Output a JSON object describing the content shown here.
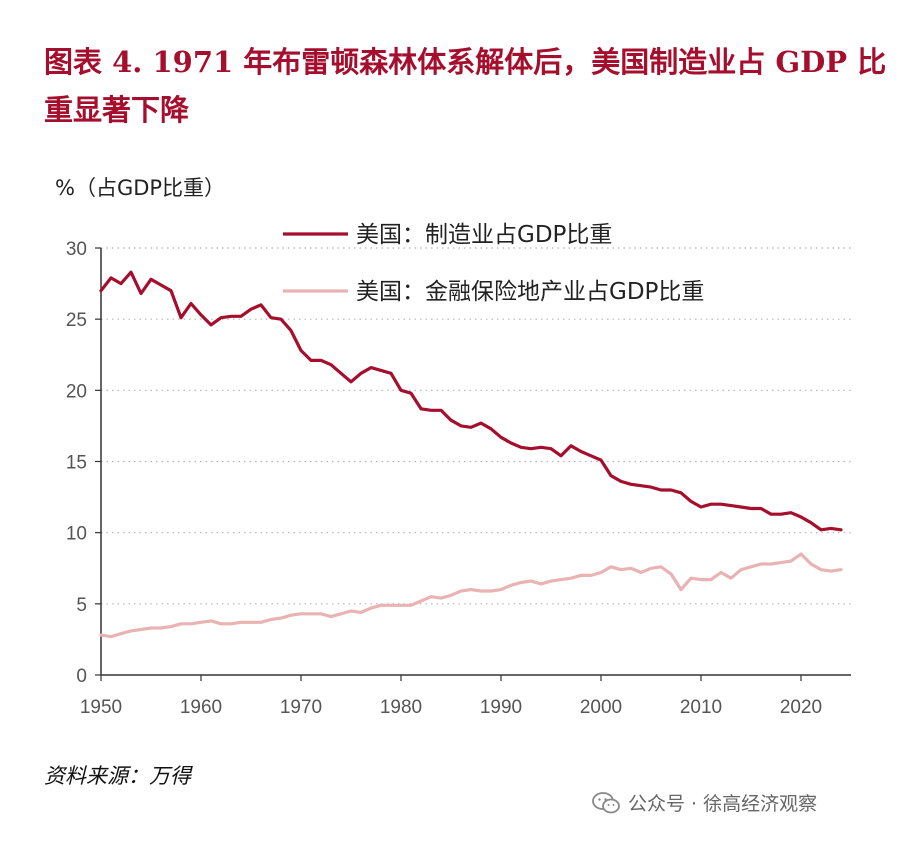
{
  "figure": {
    "title": "图表 4.   1971 年布雷顿森林体系解体后，美国制造业占 GDP 比重显著下降",
    "unit_label": "%（占GDP比重）",
    "source": "资料来源：万得",
    "watermark": "公众号 · 徐高经济观察"
  },
  "colors": {
    "title": "#a50f2d",
    "manufacturing": "#a50f2d",
    "finance": "#eab3b3"
  },
  "chart_data": {
    "type": "line",
    "title": "",
    "xlabel": "",
    "ylabel": "%（占GDP比重）",
    "xlim": [
      1950,
      2025
    ],
    "ylim": [
      0,
      30
    ],
    "x_ticks": [
      1950,
      1960,
      1970,
      1980,
      1990,
      2000,
      2010,
      2020
    ],
    "y_ticks": [
      0,
      5,
      10,
      15,
      20,
      25,
      30
    ],
    "grid": "horizontal dotted",
    "legend_position": "top-right",
    "x": [
      1950,
      1951,
      1952,
      1953,
      1954,
      1955,
      1956,
      1957,
      1958,
      1959,
      1960,
      1961,
      1962,
      1963,
      1964,
      1965,
      1966,
      1967,
      1968,
      1969,
      1970,
      1971,
      1972,
      1973,
      1974,
      1975,
      1976,
      1977,
      1978,
      1979,
      1980,
      1981,
      1982,
      1983,
      1984,
      1985,
      1986,
      1987,
      1988,
      1989,
      1990,
      1991,
      1992,
      1993,
      1994,
      1995,
      1996,
      1997,
      1998,
      1999,
      2000,
      2001,
      2002,
      2003,
      2004,
      2005,
      2006,
      2007,
      2008,
      2009,
      2010,
      2011,
      2012,
      2013,
      2014,
      2015,
      2016,
      2017,
      2018,
      2019,
      2020,
      2021,
      2022,
      2023,
      2024
    ],
    "series": [
      {
        "name": "美国：制造业占GDP比重",
        "values": [
          27.0,
          27.9,
          27.5,
          28.3,
          26.8,
          27.8,
          27.4,
          27.0,
          25.1,
          26.1,
          25.3,
          24.6,
          25.1,
          25.2,
          25.2,
          25.7,
          26.0,
          25.1,
          25.0,
          24.2,
          22.8,
          22.1,
          22.1,
          21.8,
          21.2,
          20.6,
          21.2,
          21.6,
          21.4,
          21.2,
          20.0,
          19.8,
          18.7,
          18.6,
          18.6,
          17.9,
          17.5,
          17.4,
          17.7,
          17.3,
          16.7,
          16.3,
          16.0,
          15.9,
          16.0,
          15.9,
          15.4,
          16.1,
          15.7,
          15.4,
          15.1,
          14.0,
          13.6,
          13.4,
          13.3,
          13.2,
          13.0,
          13.0,
          12.8,
          12.2,
          11.8,
          12.0,
          12.0,
          11.9,
          11.8,
          11.7,
          11.7,
          11.3,
          11.3,
          11.4,
          11.1,
          10.7,
          10.2,
          10.3,
          10.2
        ]
      },
      {
        "name": "美国：金融保险地产业占GDP比重",
        "values": [
          2.8,
          2.7,
          2.9,
          3.1,
          3.2,
          3.3,
          3.3,
          3.4,
          3.6,
          3.6,
          3.7,
          3.8,
          3.6,
          3.6,
          3.7,
          3.7,
          3.7,
          3.9,
          4.0,
          4.2,
          4.3,
          4.3,
          4.3,
          4.1,
          4.3,
          4.5,
          4.4,
          4.7,
          4.9,
          4.9,
          4.9,
          4.9,
          5.2,
          5.5,
          5.4,
          5.6,
          5.9,
          6.0,
          5.9,
          5.9,
          6.0,
          6.3,
          6.5,
          6.6,
          6.4,
          6.6,
          6.7,
          6.8,
          7.0,
          7.0,
          7.2,
          7.6,
          7.4,
          7.5,
          7.2,
          7.5,
          7.6,
          7.1,
          6.0,
          6.8,
          6.7,
          6.7,
          7.2,
          6.8,
          7.4,
          7.6,
          7.8,
          7.8,
          7.9,
          8.0,
          8.5,
          7.8,
          7.4,
          7.3,
          7.4
        ]
      }
    ]
  }
}
